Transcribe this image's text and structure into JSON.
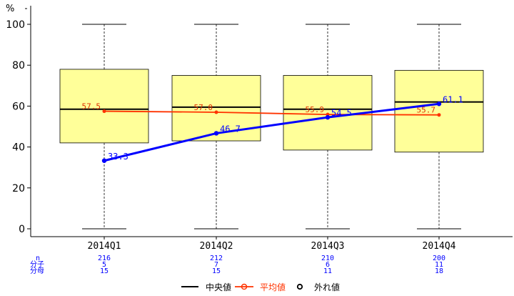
{
  "chart_data": {
    "type": "box",
    "ylabel": "%",
    "ylim": [
      0,
      100
    ],
    "yticks": [
      0,
      20,
      40,
      60,
      80,
      100
    ],
    "categories": [
      "2014Q1",
      "2014Q2",
      "2014Q3",
      "2014Q4"
    ],
    "boxes": [
      {
        "min": 0,
        "q1": 42,
        "median": 58.5,
        "q3": 78,
        "max": 100
      },
      {
        "min": 0,
        "q1": 43,
        "median": 59.5,
        "q3": 75,
        "max": 100
      },
      {
        "min": 0,
        "q1": 38.5,
        "median": 58.5,
        "q3": 75,
        "max": 100
      },
      {
        "min": 0,
        "q1": 37.5,
        "median": 62,
        "q3": 77.5,
        "max": 100
      }
    ],
    "mean": {
      "name": "平均値",
      "values": [
        57.5,
        57.0,
        55.9,
        55.7
      ],
      "labels": [
        "57.5",
        "57.0",
        "55.9",
        "55.7"
      ],
      "color": "#ff3300"
    },
    "indicator": {
      "values": [
        33.3,
        46.7,
        54.5,
        61.1
      ],
      "labels": [
        "33.3",
        "46.7",
        "54.5",
        "61.1"
      ],
      "color": "#0000ff"
    },
    "table": {
      "row_labels": [
        "n",
        "分子",
        "分母"
      ],
      "rows": [
        [
          "216",
          "212",
          "210",
          "200"
        ],
        [
          "5",
          "7",
          "6",
          "11"
        ],
        [
          "15",
          "15",
          "11",
          "18"
        ]
      ]
    },
    "legend": [
      {
        "label": "中央値",
        "color": "#000000",
        "text_color": "#000000"
      },
      {
        "label": "平均値",
        "color": "#ff3300",
        "text_color": "#ff3300"
      },
      {
        "label": "外れ値",
        "color": "#000000",
        "text_color": "#000000"
      }
    ],
    "box_fill": "#ffff99",
    "grid": false,
    "legend_position": "bottom"
  }
}
